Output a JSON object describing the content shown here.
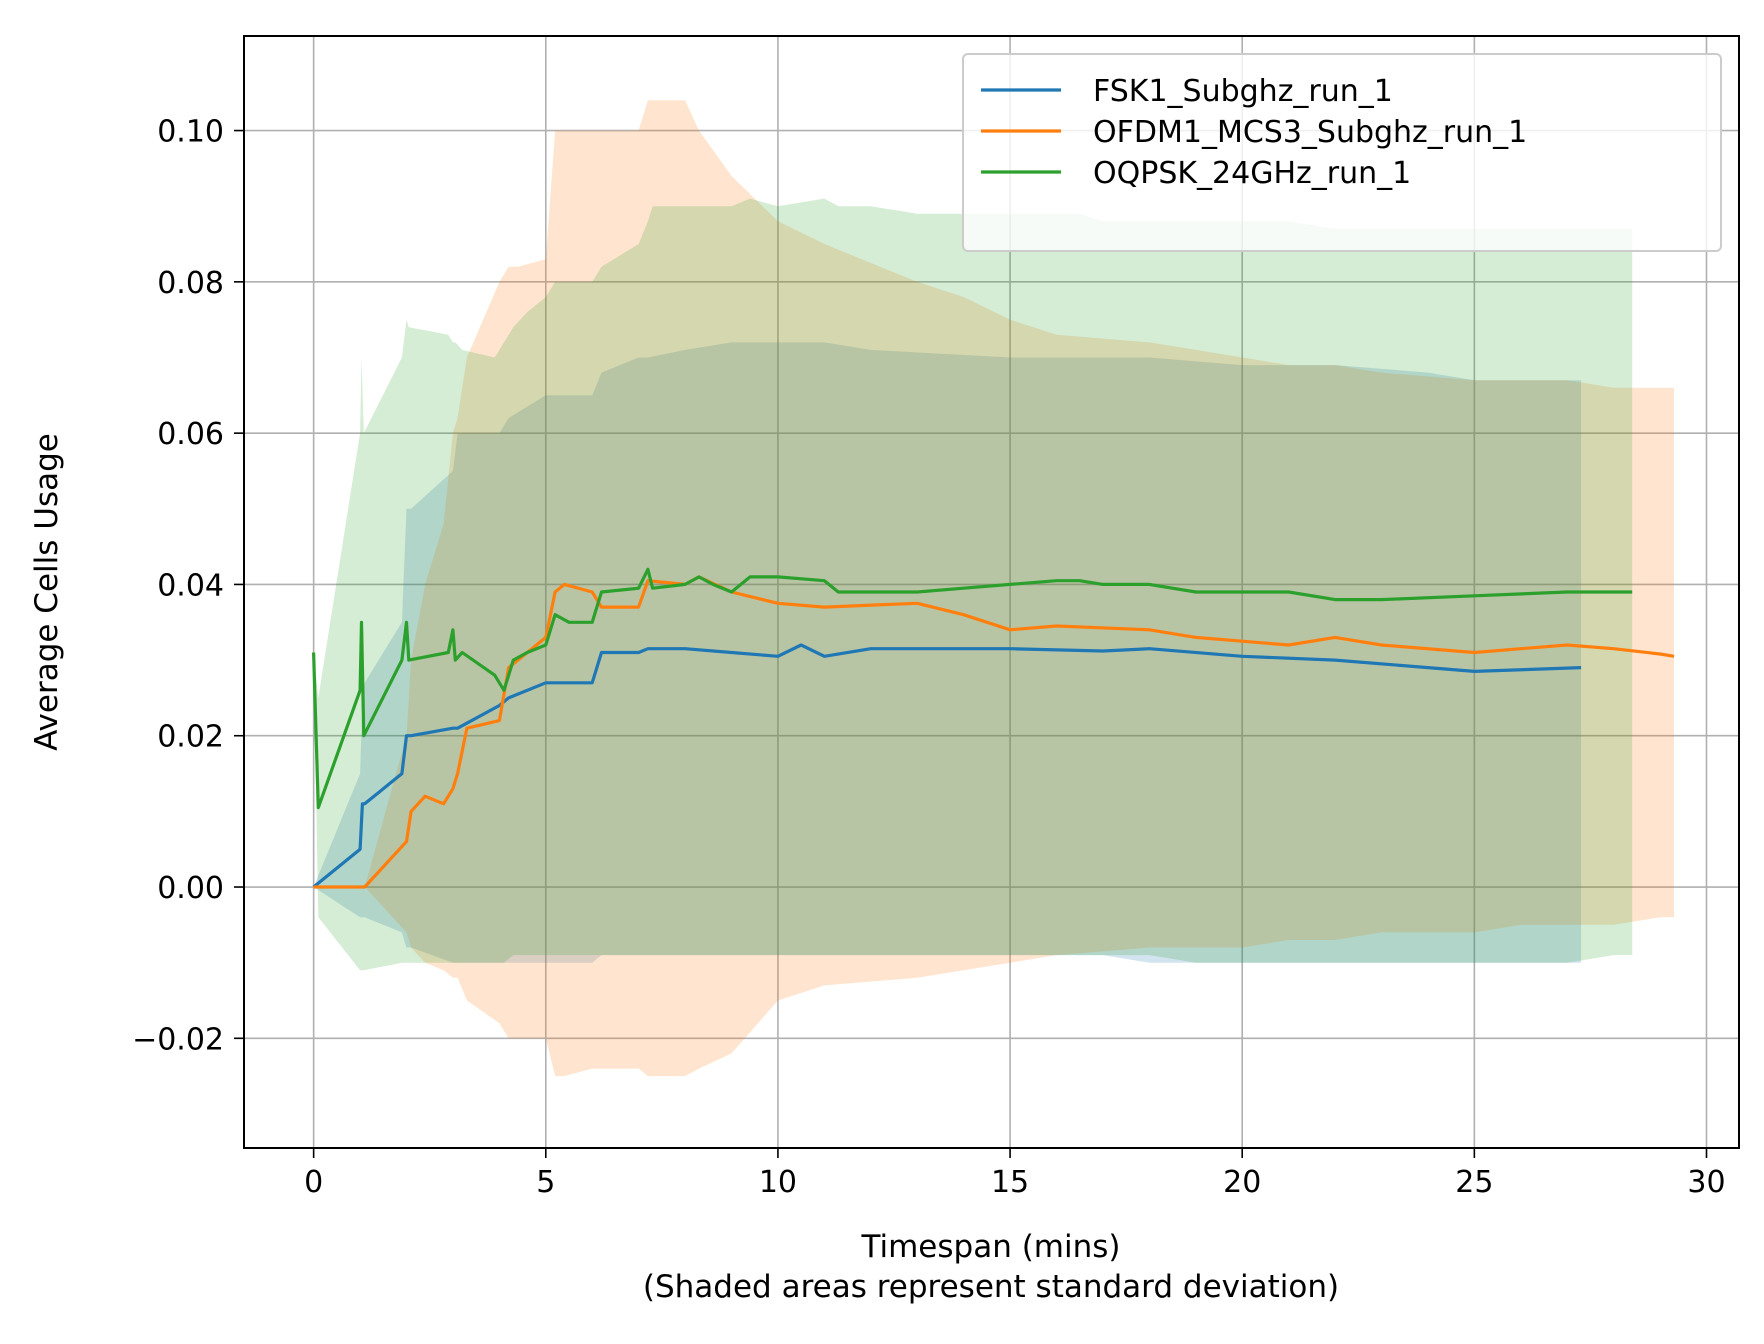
{
  "chart_data": {
    "type": "line",
    "title": "",
    "xlabel": "Timespan (mins)",
    "xlabel_note": "(Shaded areas represent standard deviation)",
    "ylabel": "Average Cells Usage",
    "xlim": [
      -1.5,
      30.7
    ],
    "ylim": [
      -0.0345,
      0.1125
    ],
    "xticks": [
      0,
      5,
      10,
      15,
      20,
      25,
      30
    ],
    "xtick_labels": [
      "0",
      "5",
      "10",
      "15",
      "20",
      "25",
      "30"
    ],
    "yticks": [
      -0.02,
      0.0,
      0.02,
      0.04,
      0.06,
      0.08,
      0.1
    ],
    "ytick_labels": [
      "−0.02",
      "0.00",
      "0.02",
      "0.04",
      "0.06",
      "0.08",
      "0.10"
    ],
    "grid": true,
    "legend_position": "top-right",
    "series": [
      {
        "name": "FSK1_Subghz_run_1",
        "color": "#1f77b4",
        "x": [
          0,
          1.0,
          1.05,
          1.1,
          1.9,
          2.0,
          2.1,
          3.0,
          3.1,
          4.0,
          4.2,
          5.0,
          6.0,
          6.2,
          7.0,
          7.2,
          8.0,
          9.0,
          10.0,
          10.5,
          11.0,
          12.0,
          15.0,
          17.0,
          18.0,
          20.0,
          22.0,
          24.0,
          25.0,
          27.3
        ],
        "y": [
          0,
          0.005,
          0.011,
          0.011,
          0.015,
          0.02,
          0.02,
          0.021,
          0.021,
          0.024,
          0.025,
          0.027,
          0.027,
          0.031,
          0.031,
          0.0315,
          0.0315,
          0.031,
          0.0305,
          0.032,
          0.0305,
          0.0315,
          0.0315,
          0.0312,
          0.0315,
          0.0305,
          0.03,
          0.029,
          0.0285,
          0.029
        ],
        "band_upper": [
          0.0,
          0.015,
          0.025,
          0.027,
          0.035,
          0.05,
          0.05,
          0.055,
          0.06,
          0.06,
          0.062,
          0.065,
          0.065,
          0.068,
          0.07,
          0.07,
          0.071,
          0.072,
          0.072,
          0.072,
          0.072,
          0.071,
          0.07,
          0.07,
          0.07,
          0.069,
          0.069,
          0.068,
          0.067,
          0.067
        ],
        "band_lower": [
          0.0,
          -0.004,
          -0.004,
          -0.004,
          -0.006,
          -0.008,
          -0.008,
          -0.01,
          -0.01,
          -0.01,
          -0.01,
          -0.01,
          -0.01,
          -0.009,
          -0.009,
          -0.009,
          -0.009,
          -0.009,
          -0.009,
          -0.009,
          -0.009,
          -0.009,
          -0.009,
          -0.009,
          -0.01,
          -0.01,
          -0.01,
          -0.01,
          -0.01,
          -0.01
        ]
      },
      {
        "name": "OFDM1_MCS3_Subghz_run_1",
        "color": "#ff7f0e",
        "x": [
          0,
          1.0,
          1.1,
          2.0,
          2.1,
          2.4,
          2.8,
          3.0,
          3.1,
          3.3,
          4.0,
          4.2,
          4.4,
          5.0,
          5.2,
          5.4,
          6.0,
          6.2,
          7.0,
          7.2,
          8.0,
          8.3,
          9.0,
          10.0,
          11.0,
          13.0,
          14.0,
          15.0,
          16.0,
          18.0,
          19.0,
          20.0,
          21.0,
          22.0,
          23.0,
          25.0,
          26.0,
          27.0,
          28.0,
          29.0,
          29.3
        ],
        "y": [
          0,
          0,
          0,
          0.006,
          0.01,
          0.012,
          0.011,
          0.013,
          0.015,
          0.021,
          0.022,
          0.029,
          0.03,
          0.033,
          0.039,
          0.04,
          0.039,
          0.037,
          0.037,
          0.0405,
          0.04,
          0.041,
          0.039,
          0.0375,
          0.037,
          0.0375,
          0.036,
          0.034,
          0.0345,
          0.034,
          0.033,
          0.0325,
          0.032,
          0.033,
          0.032,
          0.031,
          0.0315,
          0.032,
          0.0315,
          0.0308,
          0.0305
        ],
        "band_upper": [
          0.0,
          0.0,
          0.0,
          0.02,
          0.03,
          0.04,
          0.048,
          0.06,
          0.062,
          0.07,
          0.08,
          0.082,
          0.082,
          0.083,
          0.1,
          0.1,
          0.1,
          0.1,
          0.1,
          0.104,
          0.104,
          0.1,
          0.094,
          0.088,
          0.085,
          0.08,
          0.078,
          0.075,
          0.073,
          0.072,
          0.071,
          0.07,
          0.069,
          0.069,
          0.068,
          0.067,
          0.067,
          0.067,
          0.066,
          0.066,
          0.066
        ],
        "band_lower": [
          0.0,
          0.0,
          0.0,
          -0.006,
          -0.008,
          -0.01,
          -0.011,
          -0.012,
          -0.012,
          -0.015,
          -0.018,
          -0.02,
          -0.02,
          -0.02,
          -0.025,
          -0.025,
          -0.024,
          -0.024,
          -0.024,
          -0.025,
          -0.025,
          -0.024,
          -0.022,
          -0.015,
          -0.013,
          -0.012,
          -0.011,
          -0.01,
          -0.009,
          -0.008,
          -0.008,
          -0.008,
          -0.007,
          -0.007,
          -0.006,
          -0.006,
          -0.005,
          -0.005,
          -0.005,
          -0.004,
          -0.004
        ]
      },
      {
        "name": "OQPSK_24GHz_run_1",
        "color": "#2ca02c",
        "x": [
          0,
          0.1,
          1.0,
          1.03,
          1.08,
          1.9,
          2.0,
          2.05,
          2.9,
          3.0,
          3.05,
          3.2,
          3.9,
          4.1,
          4.3,
          4.6,
          5.0,
          5.2,
          5.5,
          6.0,
          6.2,
          7.0,
          7.2,
          7.3,
          8.0,
          8.3,
          8.6,
          9.0,
          9.4,
          10.0,
          11.0,
          11.3,
          12.0,
          13.0,
          14.0,
          15.0,
          16.0,
          16.5,
          17.0,
          18.0,
          19.0,
          20.0,
          21.0,
          22.0,
          23.0,
          25.0,
          27.0,
          28.0,
          28.4
        ],
        "y": [
          0.031,
          0.0105,
          0.026,
          0.035,
          0.02,
          0.03,
          0.035,
          0.03,
          0.031,
          0.034,
          0.03,
          0.031,
          0.028,
          0.026,
          0.03,
          0.031,
          0.032,
          0.036,
          0.035,
          0.035,
          0.039,
          0.0395,
          0.042,
          0.0395,
          0.04,
          0.041,
          0.04,
          0.039,
          0.041,
          0.041,
          0.0405,
          0.039,
          0.039,
          0.039,
          0.0395,
          0.04,
          0.0405,
          0.0405,
          0.04,
          0.04,
          0.039,
          0.039,
          0.039,
          0.038,
          0.038,
          0.0385,
          0.039,
          0.039,
          0.039
        ],
        "band_upper": [
          0.031,
          0.025,
          0.06,
          0.07,
          0.06,
          0.07,
          0.075,
          0.074,
          0.073,
          0.072,
          0.072,
          0.071,
          0.07,
          0.072,
          0.074,
          0.076,
          0.078,
          0.08,
          0.08,
          0.08,
          0.082,
          0.085,
          0.088,
          0.09,
          0.09,
          0.09,
          0.09,
          0.09,
          0.091,
          0.09,
          0.091,
          0.09,
          0.09,
          0.089,
          0.089,
          0.089,
          0.089,
          0.089,
          0.088,
          0.088,
          0.088,
          0.088,
          0.088,
          0.087,
          0.087,
          0.087,
          0.087,
          0.087,
          0.087
        ],
        "band_lower": [
          0.031,
          -0.004,
          -0.011,
          -0.011,
          -0.011,
          -0.01,
          -0.01,
          -0.01,
          -0.01,
          -0.01,
          -0.01,
          -0.01,
          -0.01,
          -0.01,
          -0.009,
          -0.009,
          -0.009,
          -0.009,
          -0.009,
          -0.009,
          -0.009,
          -0.009,
          -0.009,
          -0.009,
          -0.009,
          -0.009,
          -0.009,
          -0.009,
          -0.009,
          -0.009,
          -0.009,
          -0.009,
          -0.009,
          -0.009,
          -0.009,
          -0.009,
          -0.009,
          -0.009,
          -0.009,
          -0.009,
          -0.01,
          -0.01,
          -0.01,
          -0.01,
          -0.01,
          -0.01,
          -0.01,
          -0.009,
          -0.009
        ]
      }
    ]
  }
}
